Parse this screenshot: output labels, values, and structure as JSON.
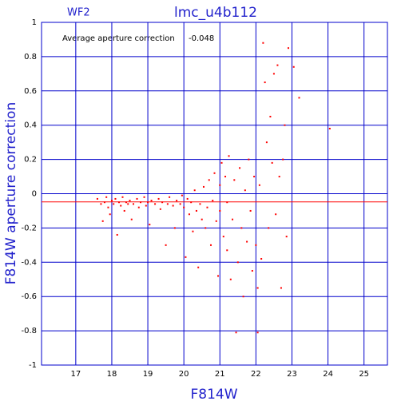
{
  "chart_data": {
    "type": "scatter",
    "title": "lmc_u4b112",
    "subtitle": "WF2",
    "x_label": "F814W",
    "y_label": "F814W aperture correction",
    "annotation": "Average aperture correction",
    "average": -0.048,
    "average_color": "#ff0000",
    "color": "#ff0000",
    "grid": true,
    "grid_color": "#0000cc",
    "xlim": [
      16.05,
      25.65
    ],
    "ylim": [
      -1,
      1
    ],
    "xticks": [
      17,
      18,
      19,
      20,
      21,
      22,
      23,
      24,
      25
    ],
    "yticks": [
      -1,
      -0.8,
      -0.6,
      -0.4,
      -0.2,
      0,
      0.2,
      0.4,
      0.6,
      0.8,
      1
    ],
    "x": [
      17.6,
      17.7,
      17.75,
      17.8,
      17.85,
      17.9,
      17.95,
      18.0,
      18.05,
      18.1,
      18.15,
      18.2,
      18.25,
      18.3,
      18.35,
      18.4,
      18.45,
      18.5,
      18.55,
      18.6,
      18.7,
      18.75,
      18.8,
      18.9,
      18.95,
      19.0,
      19.05,
      19.1,
      19.2,
      19.3,
      19.35,
      19.4,
      19.5,
      19.55,
      19.6,
      19.7,
      19.75,
      19.8,
      19.9,
      19.95,
      20.0,
      20.05,
      20.1,
      20.15,
      20.2,
      20.25,
      20.3,
      20.35,
      20.4,
      20.45,
      20.5,
      20.55,
      20.6,
      20.65,
      20.7,
      20.75,
      20.8,
      20.85,
      20.9,
      20.95,
      21.0,
      21.0,
      21.05,
      21.1,
      21.15,
      21.2,
      21.2,
      21.25,
      21.3,
      21.35,
      21.4,
      21.45,
      21.5,
      21.55,
      21.6,
      21.65,
      21.7,
      21.75,
      21.8,
      21.85,
      21.9,
      21.95,
      22.0,
      22.05,
      22.05,
      22.1,
      22.15,
      22.2,
      22.25,
      22.3,
      22.35,
      22.4,
      22.45,
      22.5,
      22.55,
      22.6,
      22.65,
      22.7,
      22.75,
      22.8,
      22.85,
      22.9,
      23.05,
      23.2,
      24.05
    ],
    "values": [
      -0.03,
      -0.06,
      -0.16,
      -0.05,
      -0.02,
      -0.08,
      -0.12,
      -0.04,
      -0.06,
      -0.03,
      -0.24,
      -0.05,
      -0.07,
      -0.02,
      -0.1,
      -0.05,
      -0.06,
      -0.04,
      -0.15,
      -0.06,
      -0.03,
      -0.08,
      -0.05,
      -0.02,
      -0.07,
      -0.05,
      -0.18,
      -0.04,
      -0.06,
      -0.03,
      -0.09,
      -0.05,
      -0.3,
      -0.06,
      -0.02,
      -0.07,
      -0.2,
      -0.04,
      -0.06,
      -0.01,
      -0.08,
      -0.37,
      -0.03,
      -0.12,
      -0.05,
      -0.22,
      0.02,
      -0.1,
      -0.43,
      -0.06,
      -0.15,
      0.04,
      -0.2,
      -0.08,
      0.08,
      -0.3,
      -0.04,
      0.12,
      -0.16,
      -0.48,
      0.05,
      -0.1,
      0.18,
      -0.25,
      0.1,
      -0.05,
      -0.33,
      0.22,
      -0.5,
      -0.15,
      0.08,
      -0.81,
      -0.4,
      0.15,
      -0.2,
      -0.6,
      0.02,
      -0.28,
      0.2,
      -0.1,
      -0.45,
      0.1,
      -0.3,
      -0.55,
      -0.81,
      0.05,
      -0.38,
      0.88,
      0.65,
      0.3,
      -0.2,
      0.45,
      0.18,
      0.7,
      -0.12,
      0.75,
      0.1,
      -0.55,
      0.2,
      0.4,
      -0.25,
      0.85,
      0.74,
      0.56,
      0.38
    ]
  }
}
